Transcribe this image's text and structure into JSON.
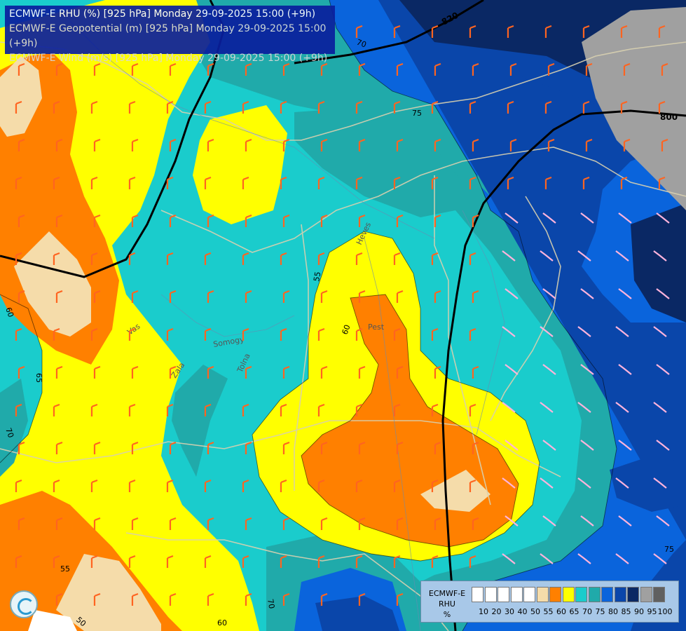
{
  "header": {
    "line1": "ECMWF-E RHU (%) [925 hPa] Monday 29-09-2025 15:00 (+9h)",
    "line2": "ECMWF-E Geopotential (m) [925 hPa] Monday 29-09-2025 15:00 (+9h)",
    "line3": "ECMWF-E Wind (m/s) [925 hPa] Monday 29-09-2025 15:00 (+9h)"
  },
  "legend": {
    "title_line1": "ECMWF-E",
    "title_line2": "RHU",
    "title_line3": "%",
    "ticks": [
      "10",
      "20",
      "30",
      "40",
      "50",
      "55",
      "60",
      "65",
      "70",
      "75",
      "80",
      "85",
      "90",
      "95",
      "100"
    ],
    "colors": [
      "#ffffff",
      "#ffffff",
      "#ffffff",
      "#ffffff",
      "#ffffff",
      "#f5dcaa",
      "#ff8000",
      "#ffff00",
      "#1acccc",
      "#20aaaa",
      "#0a64dc",
      "#0a46aa",
      "#0a2864",
      "#a0a0a0",
      "#606060"
    ]
  },
  "contour_labels": {
    "geo_820": "820",
    "geo_800": "800",
    "rh_75a": "75",
    "rh_75b": "75",
    "rh_55a": "55",
    "rh_55b": "55",
    "rh_60a": "60",
    "rh_60b": "60",
    "rh_60c": "60",
    "rh_65": "65",
    "rh_70a": "70",
    "rh_70b": "70",
    "rh_70c": "70",
    "rh_50": "50"
  },
  "place_labels": {
    "pest": "Pest",
    "tolna": "Tolna",
    "zala": "Zala",
    "vas": "Vas",
    "heves": "Heves",
    "somogy": "Somogy"
  },
  "colors": {
    "rh_55": "#f5dcaa",
    "rh_60": "#ff8000",
    "rh_65": "#ffff00",
    "rh_70": "#1acccc",
    "rh_75": "#20aaaa",
    "rh_80": "#0a64dc",
    "rh_85": "#0a46aa",
    "rh_90": "#0a2864",
    "rh_95": "#a0a0a0",
    "geopotential_line": "#000000",
    "wind_barb_strong": "#ff6420",
    "wind_barb_weak": "#ffb4dc",
    "border_line": "#d8d0b0"
  },
  "icons": {
    "logo": "ecmwf-swirl-logo"
  }
}
